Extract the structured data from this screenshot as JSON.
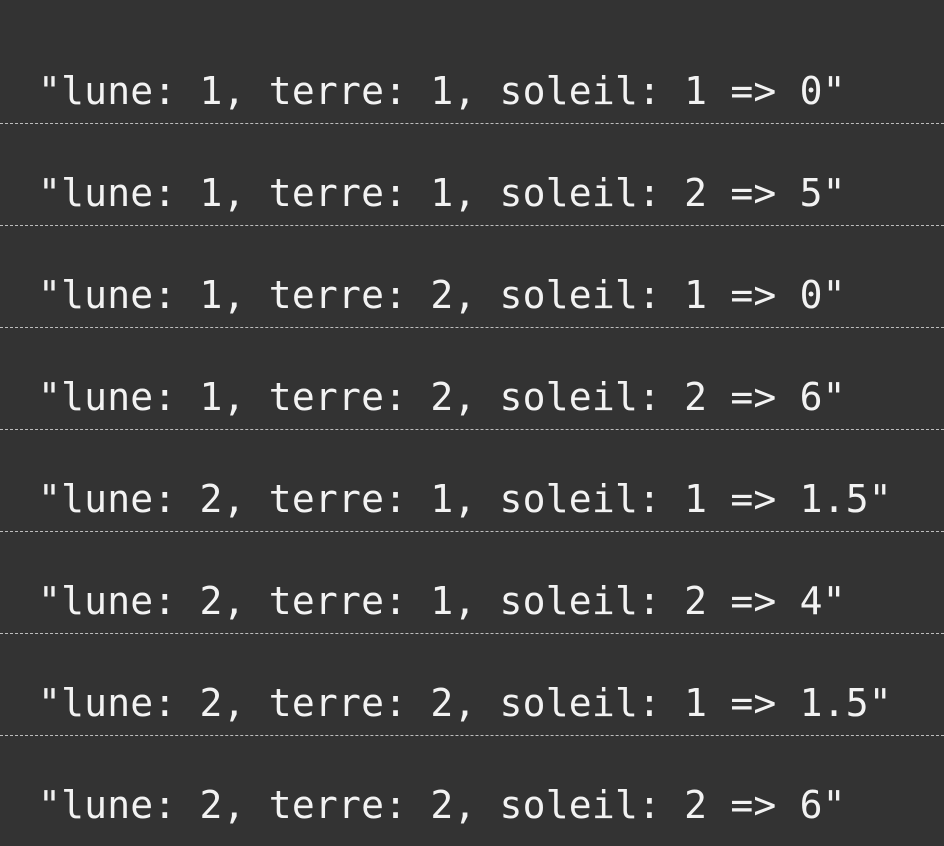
{
  "console": {
    "lines": [
      "\"lune: 1, terre: 1, soleil: 1 => 0\"",
      "\"lune: 1, terre: 1, soleil: 2 => 5\"",
      "\"lune: 1, terre: 2, soleil: 1 => 0\"",
      "\"lune: 1, terre: 2, soleil: 2 => 6\"",
      "\"lune: 2, terre: 1, soleil: 1 => 1.5\"",
      "\"lune: 2, terre: 1, soleil: 2 => 4\"",
      "\"lune: 2, terre: 2, soleil: 1 => 1.5\"",
      "\"lune: 2, terre: 2, soleil: 2 => 6\""
    ]
  },
  "colors": {
    "background": "#333333",
    "text": "#f2f2f2",
    "divider": "#bdbdbd"
  }
}
